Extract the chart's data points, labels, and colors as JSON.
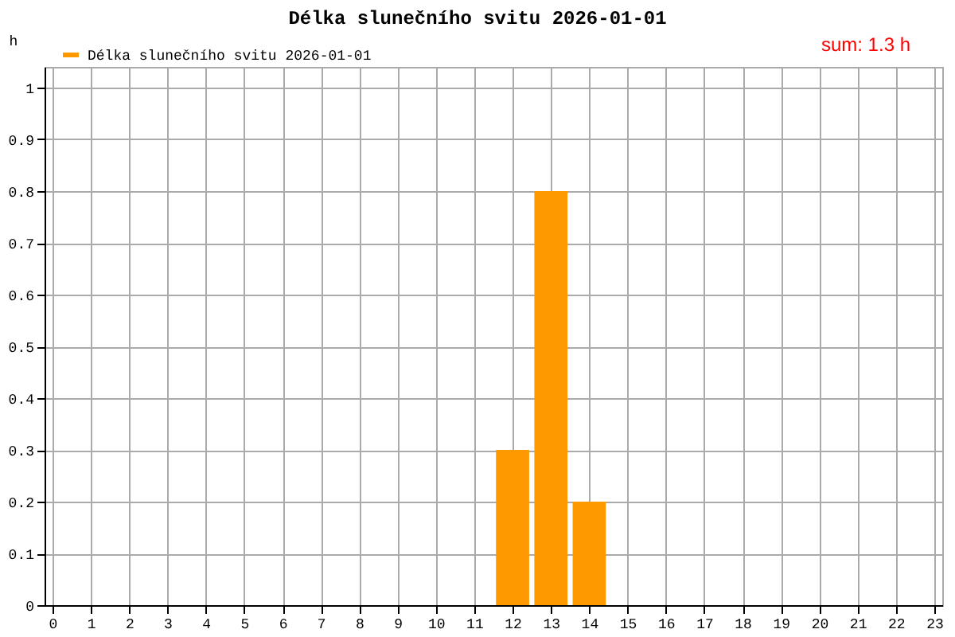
{
  "chart_data": {
    "type": "bar",
    "title": "Délka slunečního svitu 2026-01-01",
    "ylabel": "h",
    "annotations": [
      "sum: 1.3 h"
    ],
    "x": [
      12,
      13,
      14
    ],
    "series": [
      {
        "name": "Délka slunečního svitu 2026-01-01",
        "color": "#ff9900",
        "values": [
          0.3,
          0.8,
          0.2
        ]
      }
    ],
    "xlim": [
      0,
      23
    ],
    "xticks": [
      0,
      1,
      2,
      3,
      4,
      5,
      6,
      7,
      8,
      9,
      10,
      11,
      12,
      13,
      14,
      15,
      16,
      17,
      18,
      19,
      20,
      21,
      22,
      23
    ],
    "ylim": [
      0,
      1.04
    ],
    "yticks": [
      0,
      0.1,
      0.2,
      0.3,
      0.4,
      0.5,
      0.6,
      0.7,
      0.8,
      0.9,
      1
    ],
    "grid": true,
    "legend": "top left"
  }
}
